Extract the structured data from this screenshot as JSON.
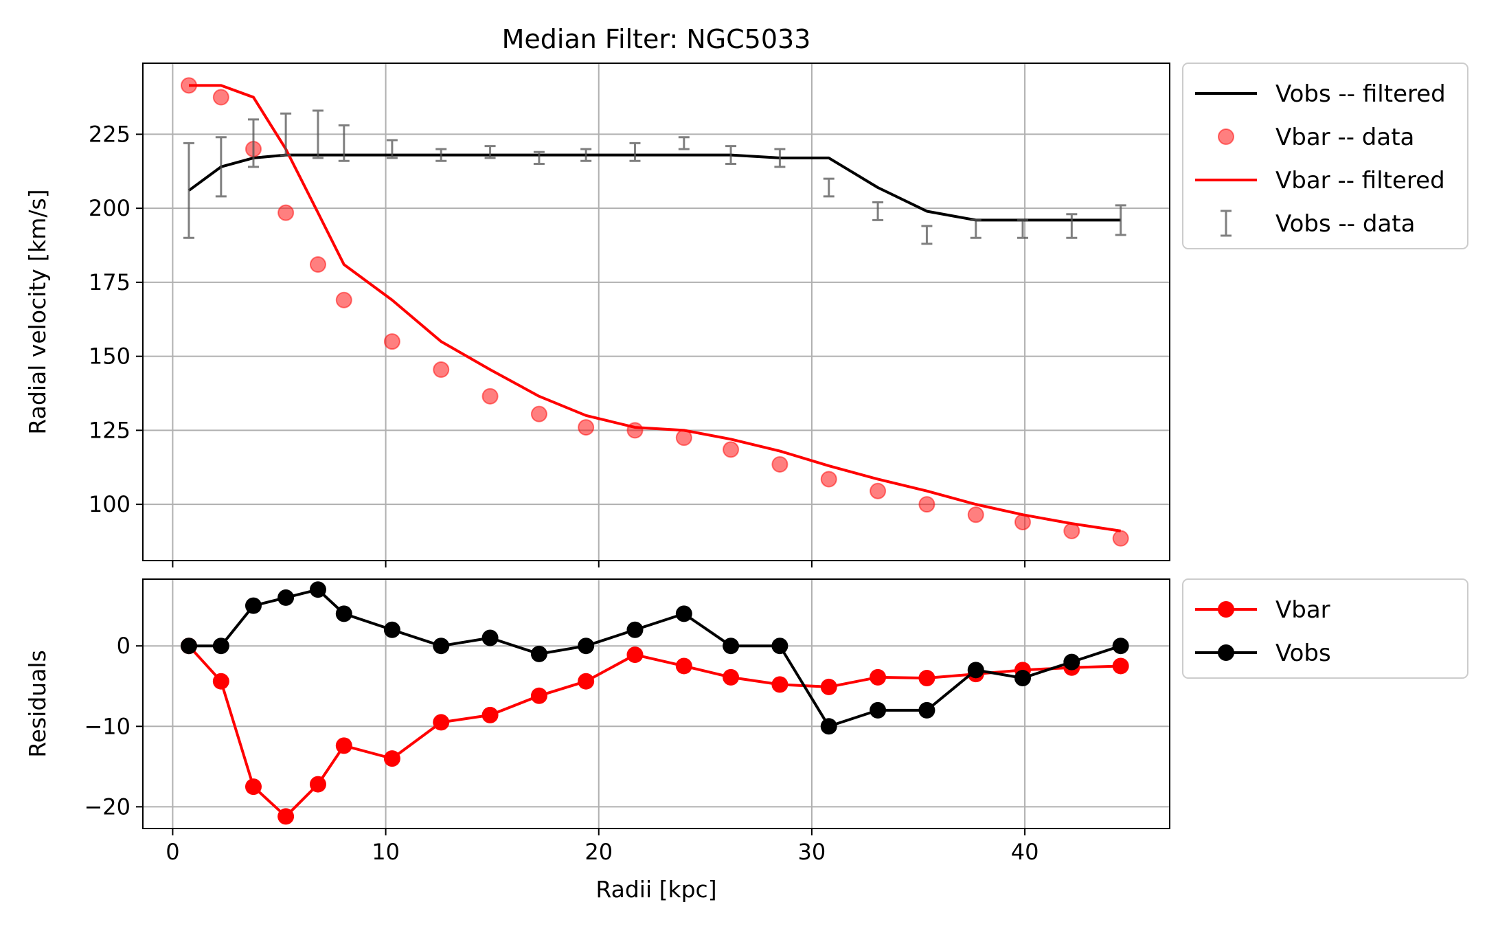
{
  "chart_data": [
    {
      "type": "line",
      "title": "Median Filter: NGC5033",
      "xlabel": "",
      "ylabel": "Radial velocity [km/s]",
      "xlim": [
        -1.4,
        46.8
      ],
      "ylim": [
        81,
        249
      ],
      "x_ticks": [
        0,
        10,
        20,
        30,
        40
      ],
      "y_ticks": [
        100,
        125,
        150,
        175,
        200,
        225
      ],
      "y_tick_labels": [
        "100",
        "125",
        "150",
        "175",
        "200",
        "225"
      ],
      "grid": true,
      "legend_placement": "outside-right-top",
      "x": [
        0.76,
        2.27,
        3.79,
        5.31,
        6.82,
        8.04,
        10.3,
        12.6,
        14.9,
        17.2,
        19.4,
        21.7,
        24.0,
        26.2,
        28.5,
        30.8,
        33.1,
        35.4,
        37.7,
        39.9,
        42.2,
        44.5
      ],
      "series": [
        {
          "name": "Vobs -- filtered",
          "style": "line",
          "color": "#000000",
          "values": [
            206,
            214,
            217,
            218,
            218,
            218,
            218,
            218,
            218,
            218,
            218,
            218,
            218,
            218,
            217,
            217,
            207,
            199,
            196,
            196,
            196,
            196
          ]
        },
        {
          "name": "Vbar -- data",
          "style": "scatter",
          "color": "#ff0000",
          "values": [
            241.5,
            237.5,
            220,
            198.5,
            181,
            169,
            155,
            145.5,
            136.5,
            130.5,
            126,
            125,
            122.5,
            118.5,
            113.5,
            108.5,
            104.5,
            100,
            96.5,
            94,
            91,
            88.5
          ]
        },
        {
          "name": "Vbar -- filtered",
          "style": "line",
          "color": "#ff0000",
          "values": [
            241.5,
            241.5,
            237.5,
            220,
            198.5,
            181,
            169,
            155,
            145.5,
            136.5,
            130,
            126,
            125,
            122,
            118,
            113,
            108.5,
            104.5,
            100,
            96.5,
            93.5,
            91
          ]
        },
        {
          "name": "Vobs -- data",
          "style": "errorbar",
          "color": "#555555",
          "values": [
            206,
            214,
            222,
            225,
            225,
            222,
            220,
            218,
            219,
            217,
            218,
            219,
            222,
            218,
            217,
            207,
            199,
            191,
            193,
            193,
            194,
            196
          ],
          "errors": [
            16,
            10,
            8,
            7,
            8,
            6,
            3,
            2,
            2,
            2,
            2,
            3,
            2,
            3,
            3,
            3,
            3,
            3,
            3,
            3,
            4,
            5
          ]
        }
      ]
    },
    {
      "type": "line",
      "title": "",
      "xlabel": "Radii [kpc]",
      "ylabel": "Residuals",
      "xlim": [
        -1.4,
        46.8
      ],
      "ylim": [
        -22.7,
        8.3
      ],
      "x_ticks": [
        0,
        10,
        20,
        30,
        40
      ],
      "x_tick_labels": [
        "0",
        "10",
        "20",
        "30",
        "40"
      ],
      "y_ticks": [
        -20,
        -10,
        0
      ],
      "y_tick_labels": [
        "−20",
        "−10",
        "0"
      ],
      "grid": true,
      "legend_placement": "outside-right-top",
      "x": [
        0.76,
        2.27,
        3.79,
        5.31,
        6.82,
        8.04,
        10.3,
        12.6,
        14.9,
        17.2,
        19.4,
        21.7,
        24.0,
        26.2,
        28.5,
        30.8,
        33.1,
        35.4,
        37.7,
        39.9,
        42.2,
        44.5
      ],
      "series": [
        {
          "name": "Vbar",
          "color": "#ff0000",
          "values": [
            0,
            -4.4,
            -17.5,
            -21.2,
            -17.2,
            -12.4,
            -14,
            -9.5,
            -8.6,
            -6.2,
            -4.4,
            -1.1,
            -2.5,
            -3.9,
            -4.8,
            -5.1,
            -3.9,
            -4,
            -3.5,
            -3,
            -2.7,
            -2.5
          ]
        },
        {
          "name": "Vobs",
          "color": "#000000",
          "values": [
            0,
            0,
            5,
            6,
            7,
            4,
            2,
            0,
            1,
            -1,
            0,
            2,
            4,
            0,
            0,
            -10,
            -8,
            -8,
            -3,
            -4,
            -2,
            0
          ]
        }
      ]
    }
  ]
}
